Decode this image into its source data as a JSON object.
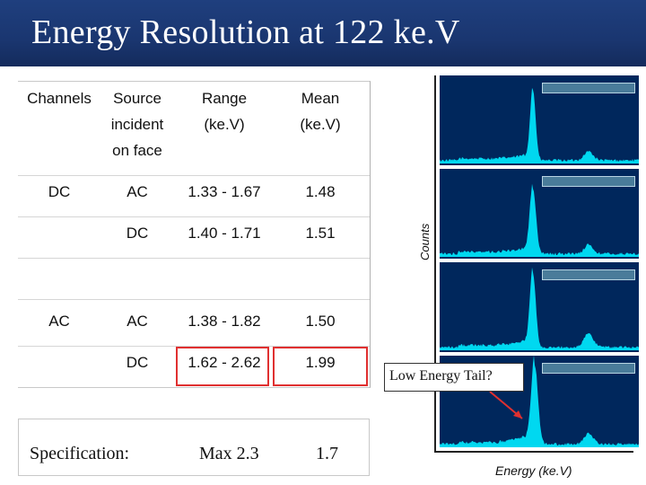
{
  "title": "Energy Resolution at 122 ke.V",
  "table": {
    "headers": {
      "channels": "Channels",
      "source": [
        "Source",
        "incident",
        "on face"
      ],
      "range": [
        "Range",
        "(ke.V)"
      ],
      "mean": [
        "Mean",
        "(ke.V)"
      ]
    },
    "rows": [
      {
        "channel": "DC",
        "source": "AC",
        "range": "1.33 - 1.67",
        "mean": "1.48"
      },
      {
        "channel": "",
        "source": "DC",
        "range": "1.40 - 1.71",
        "mean": "1.51"
      },
      {
        "channel": "AC",
        "source": "AC",
        "range": "1.38 - 1.82",
        "mean": "1.50"
      },
      {
        "channel": "",
        "source": "DC",
        "range": "1.62 - 2.62",
        "mean": "1.99"
      }
    ]
  },
  "specification": {
    "label": "Specification:",
    "range": "Max  2.3",
    "mean": "1.7"
  },
  "plot": {
    "ylabel": "Counts",
    "xlabel": "Energy (ke.V)",
    "annotation": "Low Energy Tail?",
    "panel_bg": "#00275c",
    "spectrum_color": "#00d8f0",
    "highlight_color": "#e03030"
  }
}
